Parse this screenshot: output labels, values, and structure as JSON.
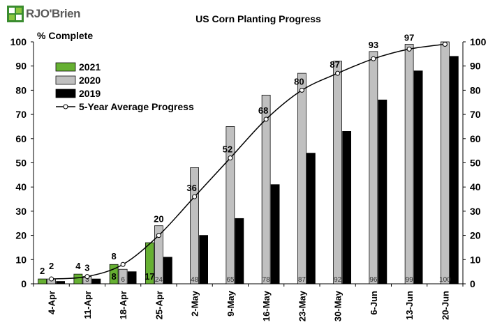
{
  "brand": {
    "name": "RJO'Brien"
  },
  "chart_data": {
    "type": "bar",
    "title": "US Corn Planting Progress",
    "ylabel": "% Complete",
    "xlabel": "",
    "ylim": [
      0,
      100
    ],
    "yticks": [
      0,
      10,
      20,
      30,
      40,
      50,
      60,
      70,
      80,
      90,
      100
    ],
    "grid": false,
    "legend_position": "top-left",
    "categories": [
      "4-Apr",
      "11-Apr",
      "18-Apr",
      "25-Apr",
      "2-May",
      "9-May",
      "16-May",
      "23-May",
      "30-May",
      "6-Jun",
      "13-Jun",
      "20-Jun"
    ],
    "series": [
      {
        "name": "2021",
        "kind": "bar",
        "color": "#66b032",
        "values": [
          2,
          4,
          8,
          17,
          null,
          null,
          null,
          null,
          null,
          null,
          null,
          null
        ]
      },
      {
        "name": "2020",
        "kind": "bar",
        "color": "#c0c0c0",
        "values": [
          2,
          3,
          6,
          24,
          48,
          65,
          78,
          87,
          92,
          96,
          99,
          100
        ]
      },
      {
        "name": "2019",
        "kind": "bar",
        "color": "#000000",
        "values": [
          1,
          2,
          5,
          11,
          20,
          27,
          41,
          54,
          63,
          76,
          88,
          94
        ]
      },
      {
        "name": "5-Year Average Progress",
        "kind": "line",
        "color": "#000000",
        "values": [
          2,
          3,
          8,
          20,
          36,
          52,
          68,
          80,
          87,
          93,
          97,
          99
        ]
      }
    ],
    "annotations": {
      "above_2020": [
        "2",
        "",
        "",
        "20",
        "",
        "",
        "",
        "",
        "",
        "93",
        "97",
        ""
      ],
      "above_2021": [
        "2",
        "4",
        "8",
        "",
        "",
        "",
        "",
        "",
        "",
        "",
        "",
        ""
      ],
      "above_2020_small": [
        "",
        "3",
        "",
        "",
        "",
        "",
        "",
        "",
        "",
        "",
        "",
        ""
      ],
      "on_avg": [
        "",
        "",
        "",
        "",
        "36",
        "52",
        "68",
        "80",
        "87",
        "",
        "",
        ""
      ]
    }
  }
}
